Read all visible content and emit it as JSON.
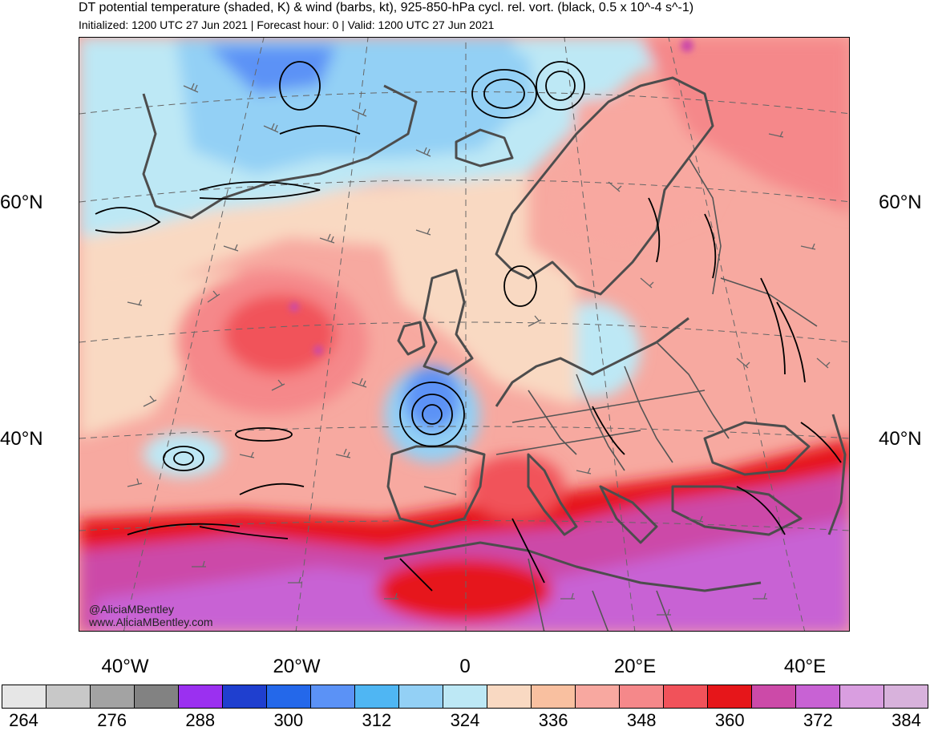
{
  "title": "DT potential temperature (shaded, K) & wind (barbs, kt), 925-850-hPa cycl. rel. vort. (black, 0.5 x 10^-4 s^-1)",
  "subtitle": "Initialized: 1200 UTC 27 Jun 2021 | Forecast hour: 0 | Valid: 1200 UTC 27 Jun 2021",
  "lat_labels": {
    "n60": "60°N",
    "n40": "40°N"
  },
  "lon_labels": {
    "w40": "40°W",
    "w20": "20°W",
    "zero": "0",
    "e20": "20°E",
    "e40": "40°E"
  },
  "credit": {
    "handle": "@AliciaMBentley",
    "site": "www.AliciaMBentley.com"
  },
  "colorbar": {
    "colors": [
      "#e6e6e6",
      "#c8c8c8",
      "#a3a3a3",
      "#828282",
      "#9b30f0",
      "#1f3fcf",
      "#2468ea",
      "#5b92f6",
      "#4fb6f3",
      "#93d0f5",
      "#bde8f5",
      "#f9d9c2",
      "#f9c0a0",
      "#f8a8a0",
      "#f5888a",
      "#f1525a",
      "#e6161a",
      "#cc4aa8",
      "#c862d4",
      "#d99ee0",
      "#d8b2dc"
    ],
    "labels": [
      "264",
      "276",
      "288",
      "300",
      "312",
      "324",
      "336",
      "348",
      "360",
      "372",
      "384"
    ]
  }
}
